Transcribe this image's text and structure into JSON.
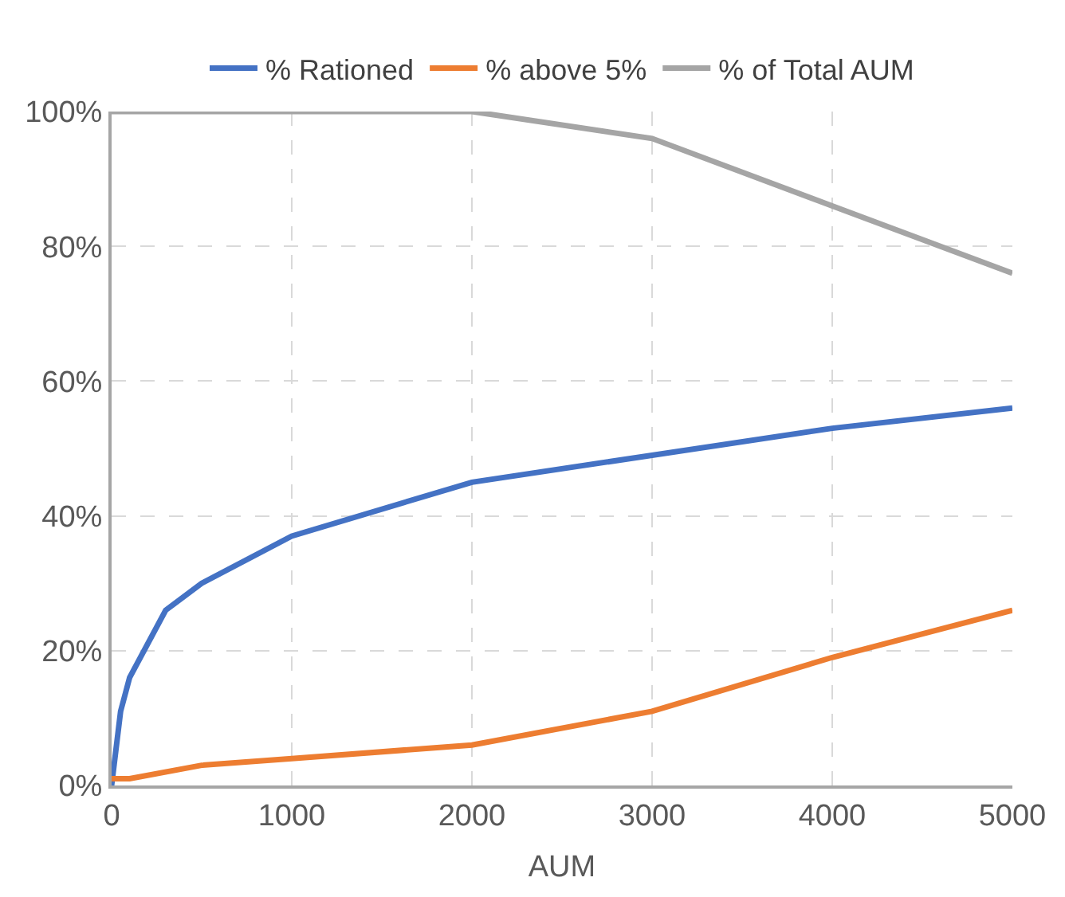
{
  "chart_data": {
    "type": "line",
    "xlabel": "AUM",
    "xlim": [
      0,
      5000
    ],
    "xticks": [
      0,
      1000,
      2000,
      3000,
      4000,
      5000
    ],
    "ylim": [
      0,
      100
    ],
    "yticks": [
      {
        "value": 0,
        "label": "0%"
      },
      {
        "value": 20,
        "label": "20%"
      },
      {
        "value": 40,
        "label": "40%"
      },
      {
        "value": 60,
        "label": "60%"
      },
      {
        "value": 80,
        "label": "80%"
      },
      {
        "value": 100,
        "label": "100%"
      }
    ],
    "grid": true,
    "legend": "top",
    "marker": "none",
    "line_style": "solid",
    "series": [
      {
        "name": "% Rationed",
        "color": "#4472c4",
        "x": [
          0,
          50,
          100,
          300,
          500,
          1000,
          2000,
          3000,
          4000,
          5000
        ],
        "values": [
          0,
          11,
          16,
          26,
          30,
          37,
          45,
          49,
          53,
          56
        ]
      },
      {
        "name": "% above 5%",
        "color": "#ed7d31",
        "x": [
          0,
          100,
          500,
          1000,
          2000,
          3000,
          4000,
          5000
        ],
        "values": [
          1,
          1,
          3,
          4,
          6,
          11,
          19,
          26
        ]
      },
      {
        "name": "% of Total AUM",
        "color": "#a5a5a5",
        "x": [
          0,
          1000,
          2000,
          3000,
          4000,
          5000
        ],
        "values": [
          100,
          100,
          100,
          96,
          86,
          76
        ]
      }
    ]
  }
}
